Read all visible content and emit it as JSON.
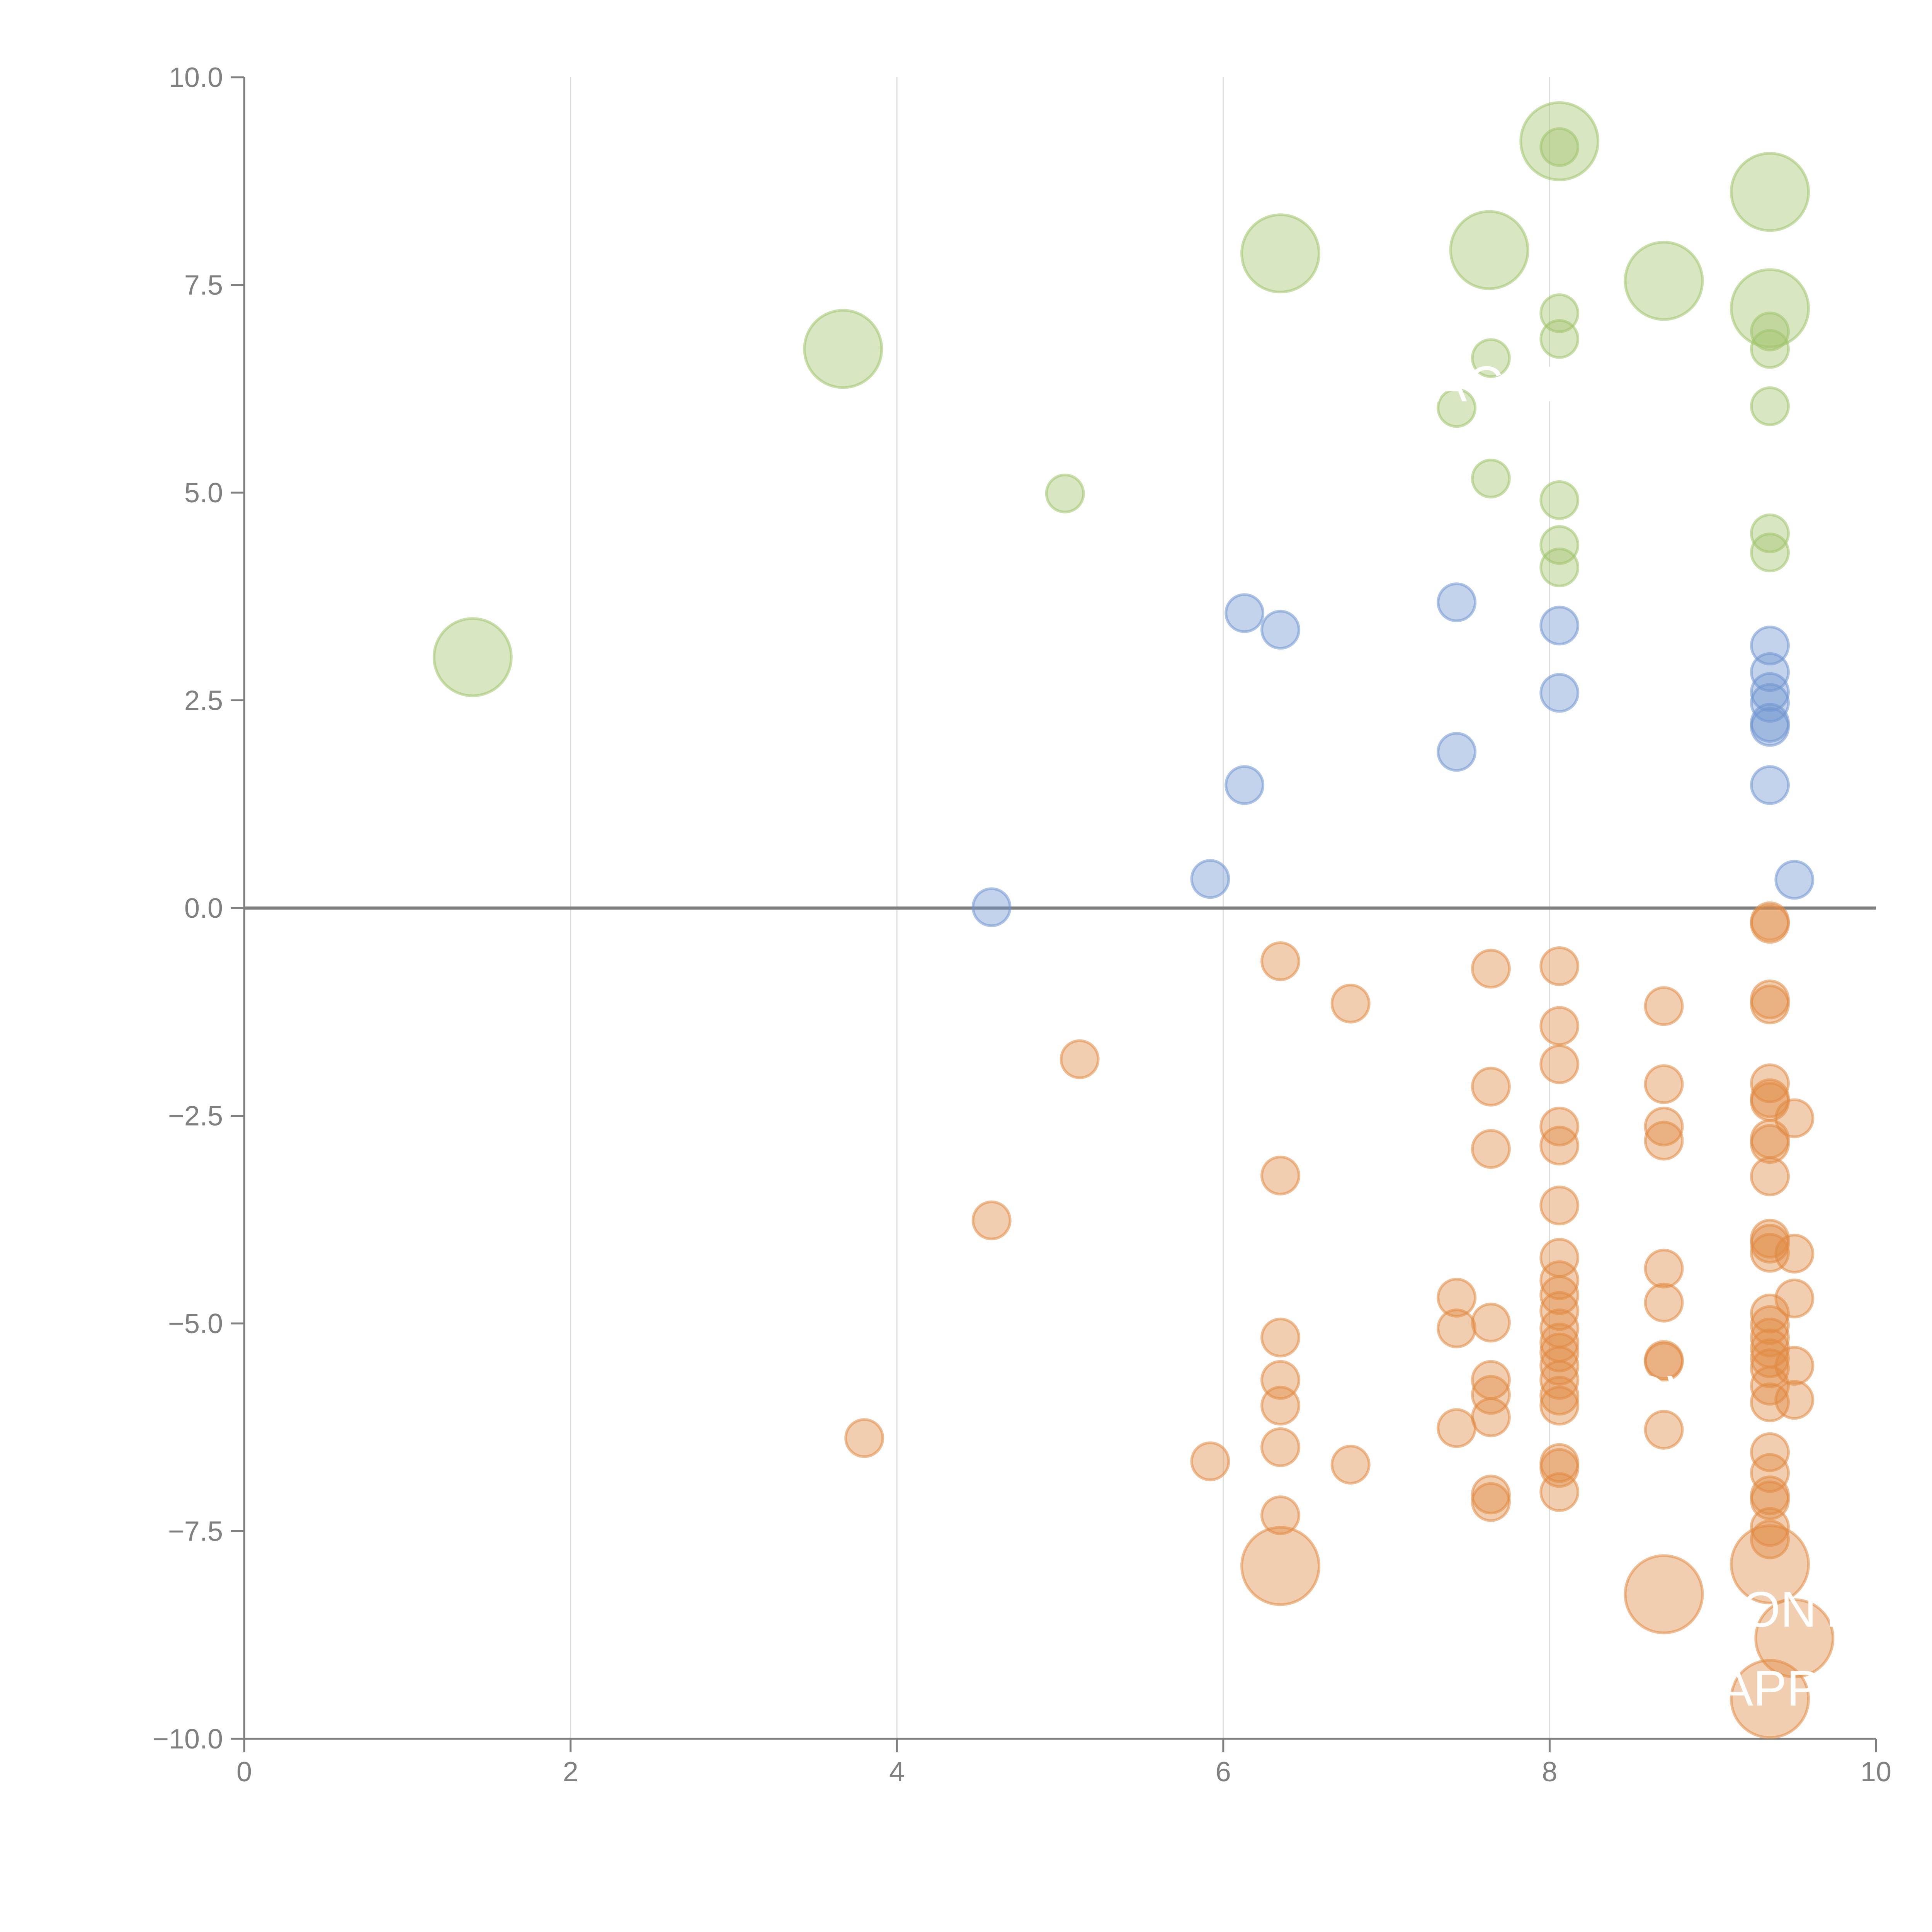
{
  "chart_data": {
    "type": "scatter",
    "title": "",
    "xlabel": "",
    "ylabel": "",
    "xlim": [
      0,
      10
    ],
    "ylim": [
      -10,
      10
    ],
    "x_ticks": [
      "0",
      "2",
      "4",
      "6",
      "8",
      "10"
    ],
    "x_tick_values": [
      0,
      2,
      4,
      6,
      8,
      10
    ],
    "y_ticks": [
      "10.0",
      "7.5",
      "5.0",
      "2.5",
      "0.0",
      "−2.5",
      "−5.0",
      "−7.5",
      "−10.0"
    ],
    "y_tick_values": [
      10,
      7.5,
      5,
      2.5,
      0,
      -2.5,
      -5,
      -7.5,
      -10
    ],
    "grid": "vertical",
    "zero_line": true,
    "legend": "none",
    "colors": {
      "green": "#a1c46b",
      "blue": "#6f95cf",
      "orange": "#e08a42",
      "axis": "#808080",
      "grid": "#dddddd"
    },
    "labels_visible_fragments": [
      "ACOM",
      "E OW",
      "ONT",
      "APP"
    ],
    "series": [
      {
        "name": "green",
        "color": "#a1c46b",
        "points": [
          {
            "x": 1.4,
            "y": 3.02,
            "size": "large"
          },
          {
            "x": 3.67,
            "y": 6.73,
            "size": "large"
          },
          {
            "x": 5.03,
            "y": 4.99,
            "size": "small"
          },
          {
            "x": 6.35,
            "y": 7.88,
            "size": "large"
          },
          {
            "x": 7.63,
            "y": 7.92,
            "size": "large"
          },
          {
            "x": 7.64,
            "y": 6.62,
            "size": "small"
          },
          {
            "x": 7.43,
            "y": 6.02,
            "size": "small"
          },
          {
            "x": 7.64,
            "y": 5.17,
            "size": "small"
          },
          {
            "x": 8.06,
            "y": 9.23,
            "size": "large"
          },
          {
            "x": 8.06,
            "y": 9.16,
            "size": "small"
          },
          {
            "x": 8.06,
            "y": 7.16,
            "size": "small"
          },
          {
            "x": 8.06,
            "y": 6.85,
            "size": "small"
          },
          {
            "x": 8.06,
            "y": 4.91,
            "size": "small"
          },
          {
            "x": 8.06,
            "y": 4.37,
            "size": "small"
          },
          {
            "x": 8.06,
            "y": 4.1,
            "size": "small"
          },
          {
            "x": 8.7,
            "y": 7.55,
            "size": "large"
          },
          {
            "x": 9.35,
            "y": 8.62,
            "size": "large"
          },
          {
            "x": 9.35,
            "y": 7.22,
            "size": "large"
          },
          {
            "x": 9.35,
            "y": 6.94,
            "size": "small"
          },
          {
            "x": 9.35,
            "y": 6.73,
            "size": "small"
          },
          {
            "x": 9.35,
            "y": 6.04,
            "size": "small"
          },
          {
            "x": 9.35,
            "y": 4.51,
            "size": "small"
          },
          {
            "x": 9.35,
            "y": 4.28,
            "size": "small"
          }
        ]
      },
      {
        "name": "blue",
        "color": "#6f95cf",
        "points": [
          {
            "x": 4.58,
            "y": 0.01,
            "size": "small"
          },
          {
            "x": 5.92,
            "y": 0.35,
            "size": "small"
          },
          {
            "x": 6.13,
            "y": 3.55,
            "size": "small"
          },
          {
            "x": 6.35,
            "y": 3.35,
            "size": "small"
          },
          {
            "x": 6.13,
            "y": 1.48,
            "size": "small"
          },
          {
            "x": 7.43,
            "y": 3.68,
            "size": "small"
          },
          {
            "x": 7.43,
            "y": 1.88,
            "size": "small"
          },
          {
            "x": 8.06,
            "y": 3.4,
            "size": "small"
          },
          {
            "x": 8.06,
            "y": 2.59,
            "size": "small"
          },
          {
            "x": 9.35,
            "y": 3.16,
            "size": "small"
          },
          {
            "x": 9.35,
            "y": 2.84,
            "size": "small"
          },
          {
            "x": 9.35,
            "y": 2.6,
            "size": "small"
          },
          {
            "x": 9.35,
            "y": 2.47,
            "size": "small"
          },
          {
            "x": 9.35,
            "y": 2.23,
            "size": "small"
          },
          {
            "x": 9.35,
            "y": 2.18,
            "size": "small"
          },
          {
            "x": 9.35,
            "y": 1.48,
            "size": "small"
          },
          {
            "x": 9.5,
            "y": 0.34,
            "size": "small"
          }
        ]
      },
      {
        "name": "orange",
        "color": "#e08a42",
        "points": [
          {
            "x": 3.8,
            "y": -6.38,
            "size": "small"
          },
          {
            "x": 4.58,
            "y": -3.76,
            "size": "small"
          },
          {
            "x": 5.12,
            "y": -1.82,
            "size": "small"
          },
          {
            "x": 5.92,
            "y": -6.66,
            "size": "small"
          },
          {
            "x": 6.35,
            "y": -0.64,
            "size": "small"
          },
          {
            "x": 6.35,
            "y": -3.22,
            "size": "small"
          },
          {
            "x": 6.35,
            "y": -5.17,
            "size": "small"
          },
          {
            "x": 6.35,
            "y": -5.68,
            "size": "small"
          },
          {
            "x": 6.35,
            "y": -5.99,
            "size": "small"
          },
          {
            "x": 6.35,
            "y": -6.49,
            "size": "small"
          },
          {
            "x": 6.35,
            "y": -7.31,
            "size": "small"
          },
          {
            "x": 6.35,
            "y": -7.92,
            "size": "large"
          },
          {
            "x": 6.78,
            "y": -1.15,
            "size": "small"
          },
          {
            "x": 6.78,
            "y": -6.7,
            "size": "small"
          },
          {
            "x": 7.43,
            "y": -4.69,
            "size": "small"
          },
          {
            "x": 7.43,
            "y": -5.06,
            "size": "small"
          },
          {
            "x": 7.43,
            "y": -6.26,
            "size": "small"
          },
          {
            "x": 7.64,
            "y": -0.73,
            "size": "small"
          },
          {
            "x": 7.64,
            "y": -2.15,
            "size": "small"
          },
          {
            "x": 7.64,
            "y": -2.9,
            "size": "small"
          },
          {
            "x": 7.64,
            "y": -4.99,
            "size": "small"
          },
          {
            "x": 7.64,
            "y": -5.68,
            "size": "small"
          },
          {
            "x": 7.64,
            "y": -5.86,
            "size": "small"
          },
          {
            "x": 7.64,
            "y": -6.13,
            "size": "small"
          },
          {
            "x": 7.64,
            "y": -7.06,
            "size": "small"
          },
          {
            "x": 7.64,
            "y": -7.15,
            "size": "small"
          },
          {
            "x": 8.06,
            "y": -0.7,
            "size": "small"
          },
          {
            "x": 8.06,
            "y": -1.42,
            "size": "small"
          },
          {
            "x": 8.06,
            "y": -1.88,
            "size": "small"
          },
          {
            "x": 8.06,
            "y": -2.63,
            "size": "small"
          },
          {
            "x": 8.06,
            "y": -2.86,
            "size": "small"
          },
          {
            "x": 8.06,
            "y": -3.58,
            "size": "small"
          },
          {
            "x": 8.06,
            "y": -4.21,
            "size": "small"
          },
          {
            "x": 8.06,
            "y": -4.48,
            "size": "small"
          },
          {
            "x": 8.06,
            "y": -4.66,
            "size": "small"
          },
          {
            "x": 8.06,
            "y": -4.85,
            "size": "small"
          },
          {
            "x": 8.06,
            "y": -5.06,
            "size": "small"
          },
          {
            "x": 8.06,
            "y": -5.23,
            "size": "small"
          },
          {
            "x": 8.06,
            "y": -5.35,
            "size": "small"
          },
          {
            "x": 8.06,
            "y": -5.51,
            "size": "small"
          },
          {
            "x": 8.06,
            "y": -5.68,
            "size": "small"
          },
          {
            "x": 8.06,
            "y": -5.87,
            "size": "small"
          },
          {
            "x": 8.06,
            "y": -5.99,
            "size": "small"
          },
          {
            "x": 8.06,
            "y": -6.68,
            "size": "small"
          },
          {
            "x": 8.06,
            "y": -6.74,
            "size": "small"
          },
          {
            "x": 8.06,
            "y": -7.03,
            "size": "small"
          },
          {
            "x": 8.7,
            "y": -1.18,
            "size": "small"
          },
          {
            "x": 8.7,
            "y": -2.12,
            "size": "small"
          },
          {
            "x": 8.7,
            "y": -2.63,
            "size": "small"
          },
          {
            "x": 8.7,
            "y": -2.8,
            "size": "small"
          },
          {
            "x": 8.7,
            "y": -4.34,
            "size": "small"
          },
          {
            "x": 8.7,
            "y": -4.75,
            "size": "small"
          },
          {
            "x": 8.7,
            "y": -5.44,
            "size": "small"
          },
          {
            "x": 8.7,
            "y": -5.46,
            "size": "small"
          },
          {
            "x": 8.7,
            "y": -6.28,
            "size": "small"
          },
          {
            "x": 8.7,
            "y": -8.26,
            "size": "large"
          },
          {
            "x": 9.35,
            "y": -0.16,
            "size": "small"
          },
          {
            "x": 9.35,
            "y": -0.19,
            "size": "small"
          },
          {
            "x": 9.35,
            "y": -1.1,
            "size": "small"
          },
          {
            "x": 9.35,
            "y": -1.16,
            "size": "small"
          },
          {
            "x": 9.35,
            "y": -2.11,
            "size": "small"
          },
          {
            "x": 9.35,
            "y": -2.29,
            "size": "small"
          },
          {
            "x": 9.35,
            "y": -2.33,
            "size": "small"
          },
          {
            "x": 9.35,
            "y": -2.78,
            "size": "small"
          },
          {
            "x": 9.35,
            "y": -2.84,
            "size": "small"
          },
          {
            "x": 9.35,
            "y": -3.23,
            "size": "small"
          },
          {
            "x": 9.35,
            "y": -3.98,
            "size": "small"
          },
          {
            "x": 9.35,
            "y": -4.04,
            "size": "small"
          },
          {
            "x": 9.35,
            "y": -4.15,
            "size": "small"
          },
          {
            "x": 9.35,
            "y": -4.88,
            "size": "small"
          },
          {
            "x": 9.35,
            "y": -5.02,
            "size": "small"
          },
          {
            "x": 9.35,
            "y": -5.17,
            "size": "small"
          },
          {
            "x": 9.35,
            "y": -5.3,
            "size": "small"
          },
          {
            "x": 9.35,
            "y": -5.42,
            "size": "small"
          },
          {
            "x": 9.35,
            "y": -5.54,
            "size": "small"
          },
          {
            "x": 9.35,
            "y": -5.75,
            "size": "small"
          },
          {
            "x": 9.35,
            "y": -5.95,
            "size": "small"
          },
          {
            "x": 9.35,
            "y": -6.55,
            "size": "small"
          },
          {
            "x": 9.35,
            "y": -6.8,
            "size": "small"
          },
          {
            "x": 9.35,
            "y": -7.07,
            "size": "small"
          },
          {
            "x": 9.35,
            "y": -7.13,
            "size": "small"
          },
          {
            "x": 9.35,
            "y": -7.45,
            "size": "small"
          },
          {
            "x": 9.35,
            "y": -7.6,
            "size": "small"
          },
          {
            "x": 9.35,
            "y": -7.9,
            "size": "large"
          },
          {
            "x": 9.35,
            "y": -9.52,
            "size": "large"
          },
          {
            "x": 9.5,
            "y": -2.53,
            "size": "small"
          },
          {
            "x": 9.5,
            "y": -4.16,
            "size": "small"
          },
          {
            "x": 9.5,
            "y": -4.7,
            "size": "small"
          },
          {
            "x": 9.5,
            "y": -5.51,
            "size": "small"
          },
          {
            "x": 9.5,
            "y": -5.92,
            "size": "small"
          },
          {
            "x": 9.5,
            "y": -8.79,
            "size": "large"
          }
        ]
      }
    ],
    "point_labels": [
      {
        "text": "ACOM",
        "x": 7.75,
        "y": 6.1,
        "color": "#ffffff"
      },
      {
        "text": "E  OW",
        "x": 8.6,
        "y": -6.05,
        "color": "#ffffff"
      },
      {
        "text": "ONT",
        "x": 9.5,
        "y": -8.65,
        "color": "#ffffff"
      },
      {
        "text": "APP",
        "x": 9.35,
        "y": -9.6,
        "color": "#ffffff"
      }
    ]
  }
}
